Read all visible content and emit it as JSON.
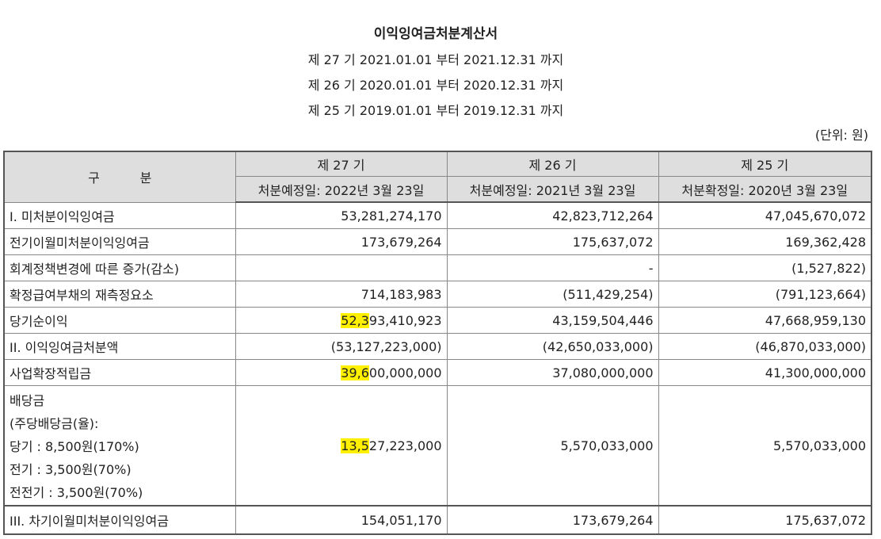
{
  "title": "이익잉여금처분계산서",
  "periods": [
    "제 27 기 2021.01.01 부터 2021.12.31 까지",
    "제 26 기 2020.01.01 부터 2020.12.31 까지",
    "제 25 기 2019.01.01 부터 2019.12.31 까지"
  ],
  "unit": "(단위: 원)",
  "header": {
    "category": "구          분",
    "cols": [
      {
        "term": "제 27 기",
        "date": "처분예정일: 2022년 3월 23일"
      },
      {
        "term": "제 26 기",
        "date": "처분예정일: 2021년 3월 23일"
      },
      {
        "term": "제 25 기",
        "date": "처분확정일: 2020년 3월 23일"
      }
    ]
  },
  "rows": [
    {
      "label": "I. 미처분이익잉여금",
      "values": [
        "53,281,274,170",
        "42,823,712,264",
        "47,045,670,072"
      ]
    },
    {
      "label": "전기이월미처분이익잉여금",
      "values": [
        "173,679,264",
        "175,637,072",
        "169,362,428"
      ]
    },
    {
      "label": "회계정책변경에 따른 증가(감소)",
      "values": [
        "",
        "-",
        "(1,527,822)"
      ]
    },
    {
      "label": "확정급여부채의 재측정요소",
      "values": [
        "714,183,983",
        "(511,429,254)",
        "(791,123,664)"
      ]
    },
    {
      "label": "당기순이익",
      "values": [
        "52,393,410,923",
        "43,159,504,446",
        "47,668,959,130"
      ],
      "hl_prefix": "52,3",
      "hl_rest": "93,410,923"
    },
    {
      "label": "II. 이익잉여금처분액",
      "values": [
        "(53,127,223,000)",
        "(42,650,033,000)",
        "(46,870,033,000)"
      ]
    },
    {
      "label": "사업확장적립금",
      "values": [
        "39,600,000,000",
        "37,080,000,000",
        "41,300,000,000"
      ],
      "hl_prefix": "39,6",
      "hl_rest": "00,000,000"
    },
    {
      "label_lines": [
        "배당금",
        "(주당배당금(율):",
        "당기 : 8,500원(170%)",
        "전기 : 3,500원(70%)",
        "전전기 : 3,500원(70%)"
      ],
      "values": [
        "13,527,223,000",
        "5,570,033,000",
        "5,570,033,000"
      ],
      "hl_prefix": "13,5",
      "hl_rest": "27,223,000"
    },
    {
      "label": "III. 차기이월미처분이익잉여금",
      "values": [
        "154,051,170",
        "173,679,264",
        "175,637,072"
      ]
    }
  ]
}
